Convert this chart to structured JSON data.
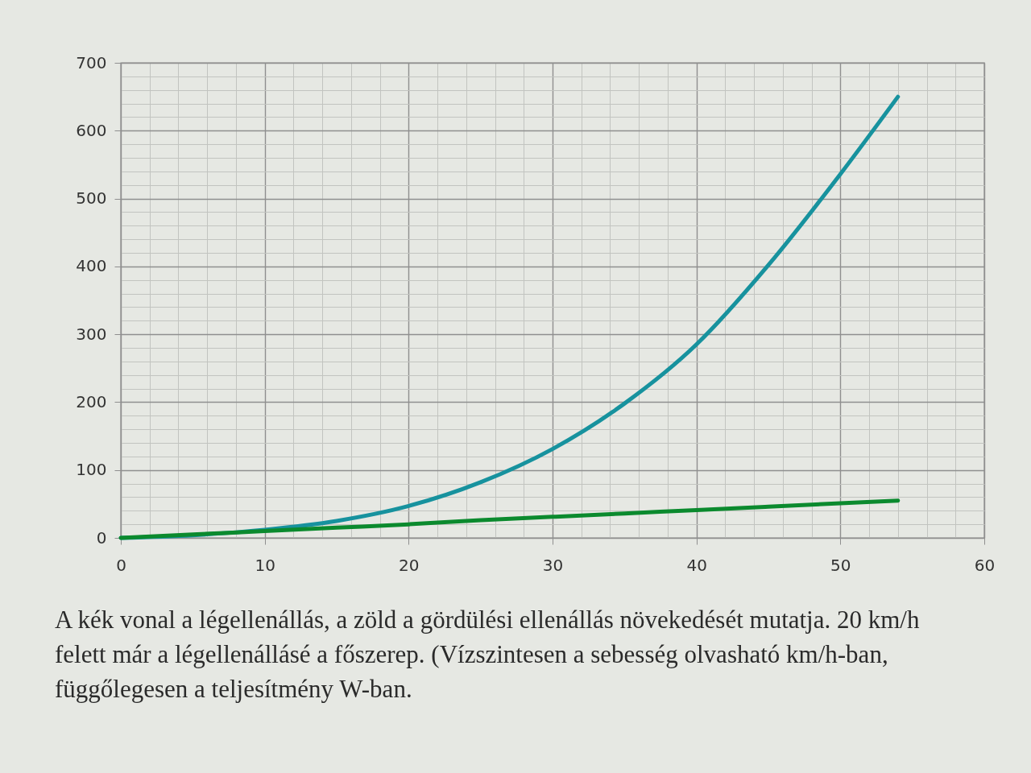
{
  "chart_data": {
    "type": "line",
    "x": [
      0,
      5,
      10,
      15,
      20,
      25,
      30,
      35,
      40,
      45,
      50,
      54
    ],
    "series": [
      {
        "color": "#17929e",
        "values": [
          0,
          4,
          12,
          25,
          47,
          82,
          131,
          198,
          285,
          402,
          536,
          650
        ]
      },
      {
        "color": "#0b8a2e",
        "values": [
          0,
          5,
          10,
          15,
          20,
          26,
          31,
          36,
          41,
          46,
          51,
          55
        ]
      }
    ],
    "xlim": [
      0,
      60
    ],
    "ylim": [
      0,
      700
    ],
    "xticks": [
      0,
      {
        "value": 2,
        "label": null
      },
      {
        "value": 4,
        "label": null
      },
      {
        "value": 6,
        "label": null
      },
      {
        "value": 8,
        "label": null
      },
      10,
      {
        "value": 12,
        "label": null
      },
      {
        "value": 14,
        "label": null
      },
      {
        "value": 16,
        "label": null
      },
      {
        "value": 18,
        "label": null
      },
      20,
      {
        "value": 22,
        "label": null
      },
      {
        "value": 24,
        "label": null
      },
      {
        "value": 26,
        "label": null
      },
      {
        "value": 28,
        "label": null
      },
      30,
      {
        "value": 32,
        "label": null
      },
      {
        "value": 34,
        "label": null
      },
      {
        "value": 36,
        "label": null
      },
      {
        "value": 38,
        "label": null
      },
      40,
      {
        "value": 42,
        "label": null
      },
      {
        "value": 44,
        "label": null
      },
      {
        "value": 46,
        "label": null
      },
      {
        "value": 48,
        "label": null
      },
      50,
      {
        "value": 52,
        "label": null
      },
      {
        "value": 54,
        "label": null
      },
      {
        "value": 56,
        "label": null
      },
      {
        "value": 58,
        "label": null
      },
      60
    ],
    "yticks": [
      0,
      {
        "value": 20,
        "label": null
      },
      {
        "value": 40,
        "label": null
      },
      {
        "value": 60,
        "label": null
      },
      {
        "value": 80,
        "label": null
      },
      100,
      {
        "value": 120,
        "label": null
      },
      {
        "value": 140,
        "label": null
      },
      {
        "value": 160,
        "label": null
      },
      {
        "value": 180,
        "label": null
      },
      200,
      {
        "value": 220,
        "label": null
      },
      {
        "value": 240,
        "label": null
      },
      {
        "value": 260,
        "label": null
      },
      {
        "value": 280,
        "label": null
      },
      300,
      {
        "value": 320,
        "label": null
      },
      {
        "value": 340,
        "label": null
      },
      {
        "value": 360,
        "label": null
      },
      {
        "value": 380,
        "label": null
      },
      400,
      {
        "value": 420,
        "label": null
      },
      {
        "value": 440,
        "label": null
      },
      {
        "value": 460,
        "label": null
      },
      {
        "value": 480,
        "label": null
      },
      500,
      {
        "value": 520,
        "label": null
      },
      {
        "value": 540,
        "label": null
      },
      {
        "value": 560,
        "label": null
      },
      {
        "value": 580,
        "label": null
      },
      600,
      {
        "value": 620,
        "label": null
      },
      {
        "value": 640,
        "label": null
      },
      {
        "value": 660,
        "label": null
      },
      {
        "value": 680,
        "label": null
      },
      700
    ],
    "grid": true,
    "annotations": [
      "A kék vonal a légellenállás, a zöld a gördülési ellenállás növekedését mutatja. 20 km/h felett már a légellenállásé a főszerep. (Vízszintesen a sebesség olvasható km/h-ban, függőlegesen a teljesítmény W-ban."
    ]
  }
}
